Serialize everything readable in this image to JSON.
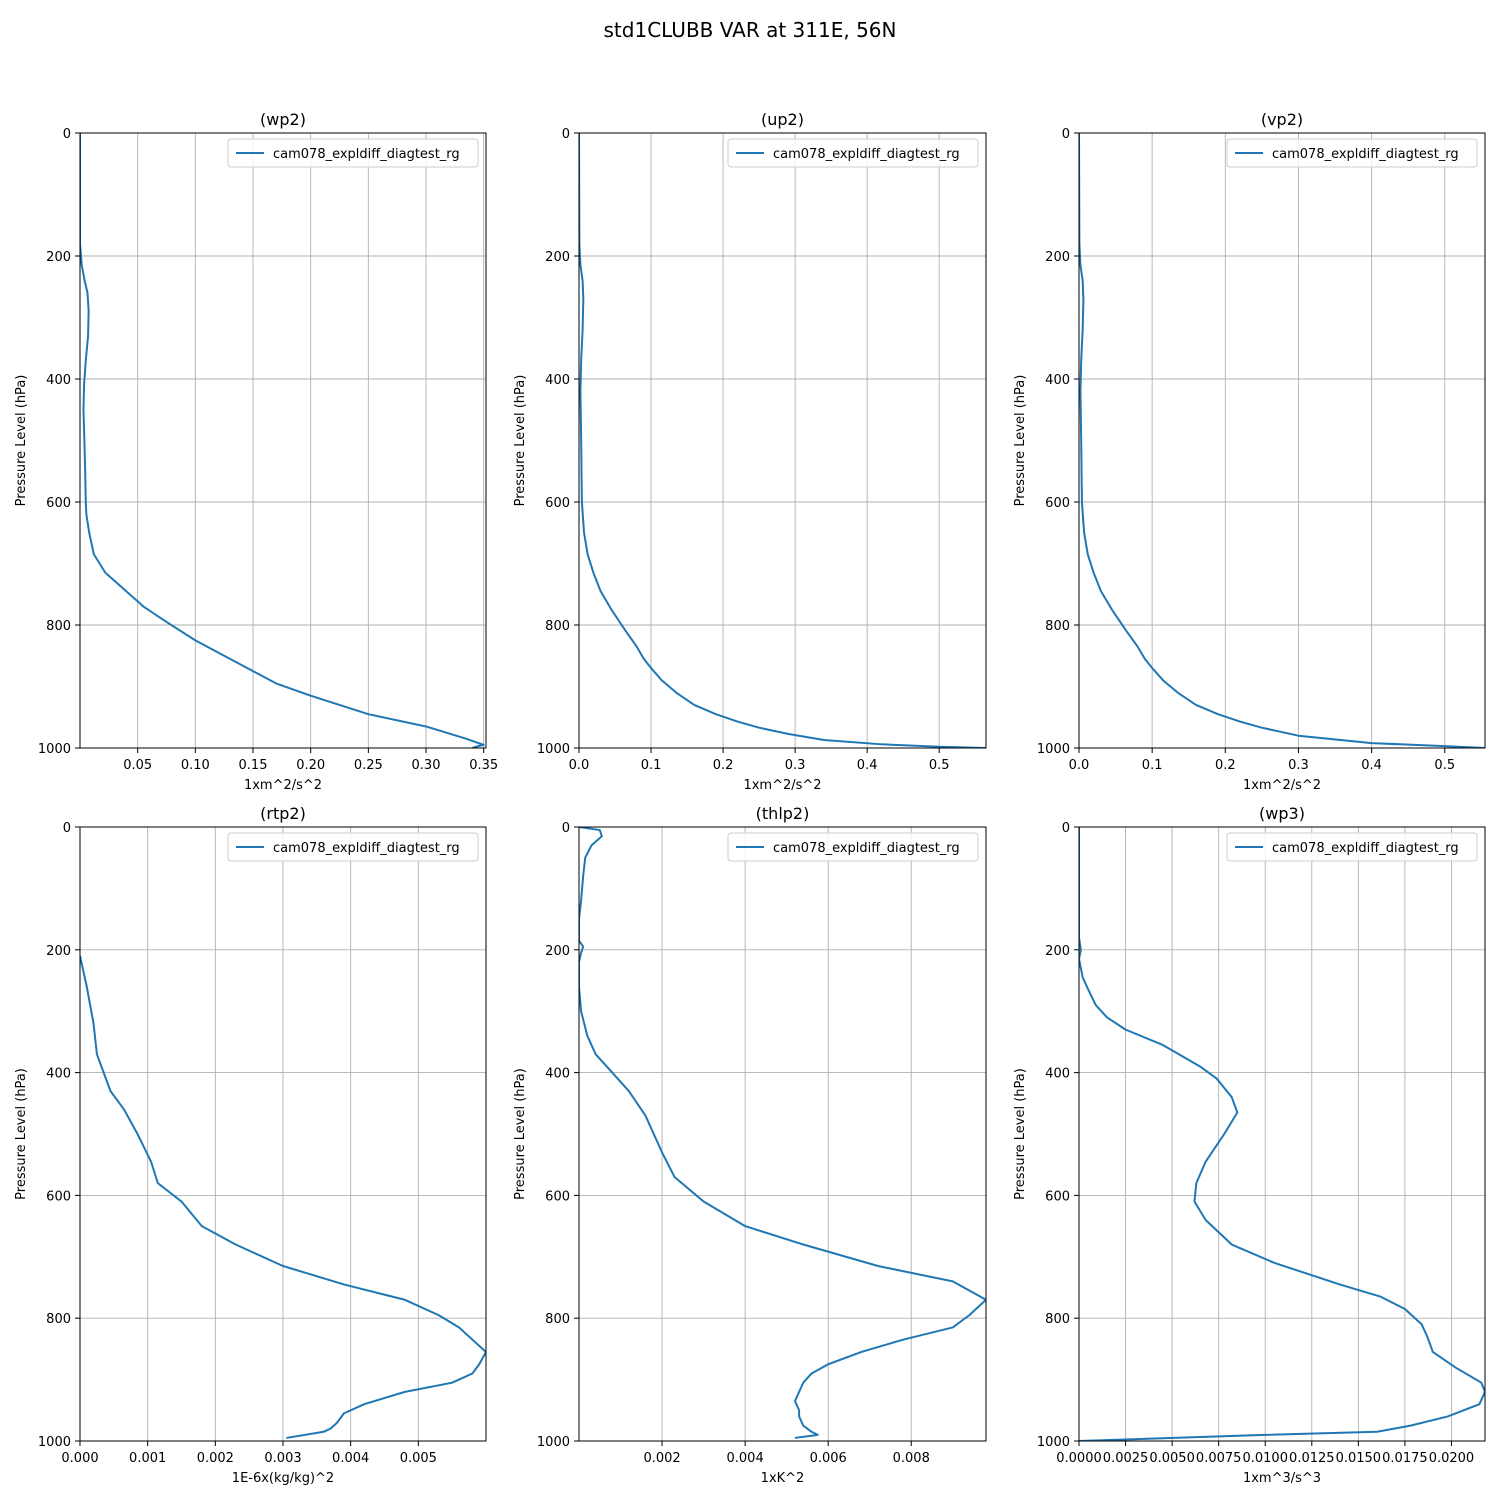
{
  "figure": {
    "title": "std1CLUBB VAR at 311E, 56N",
    "line_color": "#1f77b4",
    "grid_color": "#b0b0b0"
  },
  "chart_data": [
    {
      "type": "line",
      "title": "(wp2)",
      "xlabel": "1xm^2/s^2",
      "ylabel": "Pressure Level (hPa)",
      "legend": "cam078_expldiff_diagtest_rg",
      "legend_loc": "upper right",
      "xlim": [
        0.0,
        0.352
      ],
      "ylim": [
        1000,
        0
      ],
      "grid": true,
      "xticks": [
        0.05,
        0.1,
        0.15,
        0.2,
        0.25,
        0.3,
        0.35
      ],
      "xtick_labels": [
        "0.05",
        "0.10",
        "0.15",
        "0.20",
        "0.25",
        "0.30",
        "0.35"
      ],
      "yticks": [
        0,
        200,
        400,
        600,
        800,
        1000
      ],
      "ytick_labels": [
        "0",
        "200",
        "400",
        "600",
        "800",
        "1000"
      ],
      "series": [
        {
          "name": "cam078_expldiff_diagtest_rg",
          "x": [
            0.0,
            0.0,
            0.0015,
            0.004,
            0.0065,
            0.0075,
            0.007,
            0.005,
            0.0035,
            0.003,
            0.0038,
            0.0045,
            0.005,
            0.0055,
            0.008,
            0.012,
            0.022,
            0.04,
            0.055,
            0.075,
            0.1,
            0.125,
            0.15,
            0.17,
            0.2,
            0.25,
            0.3,
            0.335,
            0.35,
            0.345,
            0.34
          ],
          "y": [
            0,
            180,
            215,
            240,
            260,
            290,
            330,
            370,
            410,
            450,
            500,
            550,
            600,
            620,
            650,
            685,
            715,
            745,
            770,
            795,
            825,
            850,
            875,
            895,
            915,
            945,
            965,
            985,
            995,
            997,
            1000
          ]
        }
      ]
    },
    {
      "type": "line",
      "title": "(up2)",
      "xlabel": "1xm^2/s^2",
      "ylabel": "Pressure Level (hPa)",
      "legend": "cam078_expldiff_diagtest_rg",
      "legend_loc": "upper right",
      "xlim": [
        0.0,
        0.565
      ],
      "ylim": [
        1000,
        0
      ],
      "grid": true,
      "xticks": [
        0.0,
        0.1,
        0.2,
        0.3,
        0.4,
        0.5
      ],
      "xtick_labels": [
        "0.0",
        "0.1",
        "0.2",
        "0.3",
        "0.4",
        "0.5"
      ],
      "yticks": [
        0,
        200,
        400,
        600,
        800,
        1000
      ],
      "ytick_labels": [
        "0",
        "200",
        "400",
        "600",
        "800",
        "1000"
      ],
      "series": [
        {
          "name": "cam078_expldiff_diagtest_rg",
          "x": [
            0.0,
            0.0005,
            0.002,
            0.005,
            0.006,
            0.005,
            0.003,
            0.002,
            0.003,
            0.004,
            0.007,
            0.012,
            0.02,
            0.03,
            0.045,
            0.065,
            0.08,
            0.09,
            0.1,
            0.115,
            0.135,
            0.16,
            0.19,
            0.22,
            0.25,
            0.29,
            0.34,
            0.42,
            0.5,
            0.565
          ],
          "y": [
            0,
            180,
            215,
            240,
            270,
            320,
            370,
            420,
            500,
            600,
            650,
            685,
            715,
            745,
            775,
            810,
            835,
            855,
            870,
            890,
            910,
            930,
            945,
            957,
            967,
            977,
            987,
            994,
            998,
            1000
          ]
        }
      ]
    },
    {
      "type": "line",
      "title": "(vp2)",
      "xlabel": "1xm^2/s^2",
      "ylabel": "Pressure Level (hPa)",
      "legend": "cam078_expldiff_diagtest_rg",
      "legend_loc": "upper right",
      "xlim": [
        0.0,
        0.555
      ],
      "ylim": [
        1000,
        0
      ],
      "grid": true,
      "xticks": [
        0.0,
        0.1,
        0.2,
        0.3,
        0.4,
        0.5
      ],
      "xtick_labels": [
        "0.0",
        "0.1",
        "0.2",
        "0.3",
        "0.4",
        "0.5"
      ],
      "yticks": [
        0,
        200,
        400,
        600,
        800,
        1000
      ],
      "ytick_labels": [
        "0",
        "200",
        "400",
        "600",
        "800",
        "1000"
      ],
      "series": [
        {
          "name": "cam078_expldiff_diagtest_rg",
          "x": [
            0.0,
            0.0005,
            0.002,
            0.005,
            0.006,
            0.005,
            0.003,
            0.002,
            0.003,
            0.004,
            0.007,
            0.012,
            0.02,
            0.03,
            0.045,
            0.065,
            0.08,
            0.09,
            0.1,
            0.115,
            0.135,
            0.16,
            0.19,
            0.22,
            0.25,
            0.3,
            0.4,
            0.5,
            0.555
          ],
          "y": [
            0,
            180,
            215,
            240,
            270,
            320,
            370,
            420,
            500,
            600,
            650,
            685,
            715,
            745,
            775,
            810,
            835,
            855,
            870,
            890,
            910,
            930,
            945,
            957,
            967,
            980,
            992,
            997,
            1000
          ]
        }
      ]
    },
    {
      "type": "line",
      "title": "(rtp2)",
      "xlabel": "1E-6x(kg/kg)^2",
      "ylabel": "Pressure Level (hPa)",
      "legend": "cam078_expldiff_diagtest_rg",
      "legend_loc": "upper right",
      "xlim": [
        0.0,
        0.006
      ],
      "ylim": [
        1000,
        0
      ],
      "grid": true,
      "xticks": [
        0.0,
        0.001,
        0.002,
        0.003,
        0.004,
        0.005
      ],
      "xtick_labels": [
        "0.000",
        "0.001",
        "0.002",
        "0.003",
        "0.004",
        "0.005"
      ],
      "yticks": [
        0,
        200,
        400,
        600,
        800,
        1000
      ],
      "ytick_labels": [
        "0",
        "200",
        "400",
        "600",
        "800",
        "1000"
      ],
      "series": [
        {
          "name": "cam078_expldiff_diagtest_rg",
          "x": [
            0.0,
            0.0001,
            0.0002,
            0.00025,
            0.00035,
            0.00045,
            0.00065,
            0.00085,
            0.00105,
            0.00115,
            0.0015,
            0.0018,
            0.0023,
            0.003,
            0.0039,
            0.0048,
            0.0053,
            0.0056,
            0.0058,
            0.006,
            0.0059,
            0.0058,
            0.0055,
            0.0048,
            0.0042,
            0.0039,
            0.0038,
            0.0037,
            0.0036,
            0.00305
          ],
          "y": [
            210,
            260,
            320,
            370,
            400,
            430,
            460,
            500,
            545,
            580,
            610,
            650,
            680,
            715,
            745,
            770,
            795,
            815,
            835,
            855,
            875,
            890,
            905,
            920,
            940,
            955,
            970,
            980,
            985,
            995
          ]
        }
      ]
    },
    {
      "type": "line",
      "title": "(thlp2)",
      "xlabel": "1xK^2",
      "ylabel": "Pressure Level (hPa)",
      "legend": "cam078_expldiff_diagtest_rg",
      "legend_loc": "upper right",
      "xlim": [
        0.0,
        0.0098
      ],
      "ylim": [
        1000,
        0
      ],
      "grid": true,
      "xticks": [
        0.002,
        0.004,
        0.006,
        0.008
      ],
      "xtick_labels": [
        "0.002",
        "0.004",
        "0.006",
        "0.008"
      ],
      "yticks": [
        0,
        200,
        400,
        600,
        800,
        1000
      ],
      "ytick_labels": [
        "0",
        "200",
        "400",
        "600",
        "800",
        "1000"
      ],
      "series": [
        {
          "name": "cam078_expldiff_diagtest_rg",
          "x": [
            0.0,
            0.0005,
            0.00055,
            0.0003,
            0.00015,
            0.0001,
            5e-05,
            0.0,
            0.0,
            0.0001,
            5e-05,
            0.0,
            0.0,
            5e-05,
            0.0002,
            0.0004,
            0.0008,
            0.0012,
            0.0014,
            0.0016,
            0.0018,
            0.002,
            0.0023,
            0.003,
            0.004,
            0.0054,
            0.0072,
            0.009,
            0.0098,
            0.0094,
            0.009,
            0.0078,
            0.0068,
            0.006,
            0.0056,
            0.0054,
            0.0053,
            0.0052,
            0.0053,
            0.0053,
            0.0054,
            0.0056,
            0.00575,
            0.0052
          ],
          "y": [
            0,
            5,
            15,
            30,
            50,
            80,
            120,
            150,
            185,
            195,
            205,
            220,
            260,
            300,
            340,
            370,
            400,
            430,
            450,
            470,
            500,
            530,
            570,
            610,
            650,
            680,
            715,
            740,
            770,
            795,
            815,
            835,
            855,
            875,
            890,
            905,
            920,
            935,
            950,
            960,
            975,
            985,
            990,
            995
          ]
        }
      ]
    },
    {
      "type": "line",
      "title": "(wp3)",
      "xlabel": "1xm^3/s^3",
      "ylabel": "Pressure Level (hPa)",
      "legend": "cam078_expldiff_diagtest_rg",
      "legend_loc": "upper right",
      "xlim": [
        0.0,
        0.0218
      ],
      "ylim": [
        1000,
        0
      ],
      "grid": true,
      "xticks": [
        0.0,
        0.0025,
        0.005,
        0.0075,
        0.01,
        0.0125,
        0.015,
        0.0175,
        0.02
      ],
      "xtick_labels": [
        "0.0000",
        "0.0025",
        "0.0050",
        "0.0075",
        "0.0100",
        "0.0125",
        "0.0150",
        "0.0175",
        "0.0200"
      ],
      "yticks": [
        0,
        200,
        400,
        600,
        800,
        1000
      ],
      "ytick_labels": [
        "0",
        "200",
        "400",
        "600",
        "800",
        "1000"
      ],
      "series": [
        {
          "name": "cam078_expldiff_diagtest_rg",
          "x": [
            0.0,
            0.0,
            0.0001,
            0.0,
            0.0002,
            0.0005,
            0.0009,
            0.0015,
            0.0025,
            0.0045,
            0.0065,
            0.0074,
            0.0082,
            0.0085,
            0.0078,
            0.0068,
            0.0063,
            0.0062,
            0.0068,
            0.0082,
            0.0105,
            0.014,
            0.0162,
            0.0175,
            0.0184,
            0.0187,
            0.019,
            0.0202,
            0.0216,
            0.0218,
            0.0215,
            0.0198,
            0.0178,
            0.016,
            0.01,
            0.0
          ],
          "y": [
            0,
            180,
            200,
            215,
            245,
            265,
            290,
            310,
            330,
            355,
            390,
            410,
            440,
            465,
            500,
            545,
            580,
            610,
            640,
            680,
            710,
            745,
            765,
            785,
            810,
            830,
            855,
            880,
            905,
            920,
            940,
            960,
            975,
            985,
            990,
            1000
          ]
        }
      ]
    }
  ]
}
